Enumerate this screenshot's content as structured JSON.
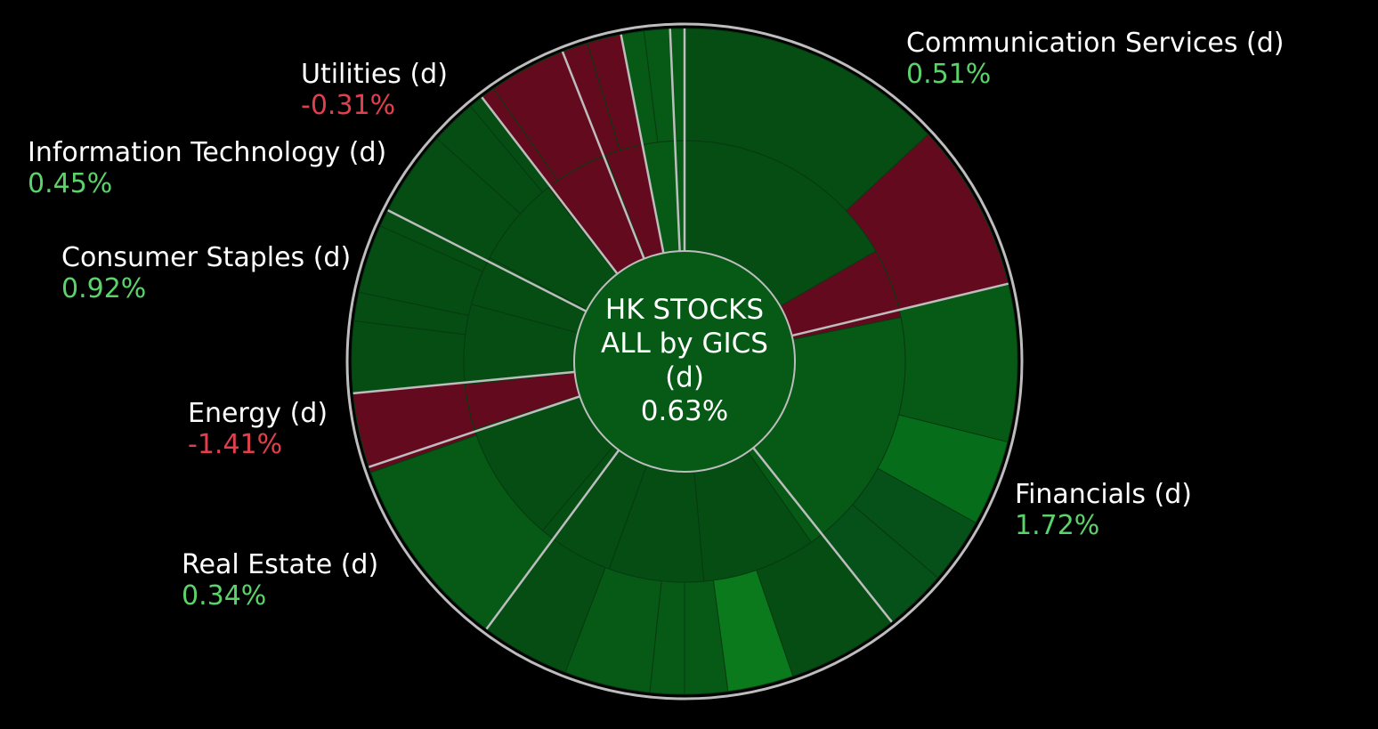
{
  "chart_data": {
    "type": "sunburst",
    "center": {
      "lines": [
        "HK STOCKS",
        "ALL by GICS",
        "(d)"
      ],
      "value": "0.63%"
    },
    "colors": {
      "background": "#000000",
      "center_fill": "#075a16",
      "positive": "#5bd36a",
      "negative": "#e0404e",
      "label": "#ffffff",
      "sector_separator": "#bdbdbd"
    },
    "sectors": [
      {
        "name": "Communication Services (d)",
        "value": "0.51%"
      },
      {
        "name": "Financials (d)",
        "value": "1.72%"
      },
      {
        "name": "",
        "value": ""
      },
      {
        "name": "Real Estate (d)",
        "value": "0.34%"
      },
      {
        "name": "Energy (d)",
        "value": "-1.41%"
      },
      {
        "name": "Consumer Staples (d)",
        "value": "0.92%"
      },
      {
        "name": "Information Technology (d)",
        "value": "0.45%"
      },
      {
        "name": "Utilities (d)",
        "value": "-0.31%"
      },
      {
        "name": "",
        "value": ""
      },
      {
        "name": "",
        "value": ""
      },
      {
        "name": "",
        "value": ""
      }
    ]
  }
}
